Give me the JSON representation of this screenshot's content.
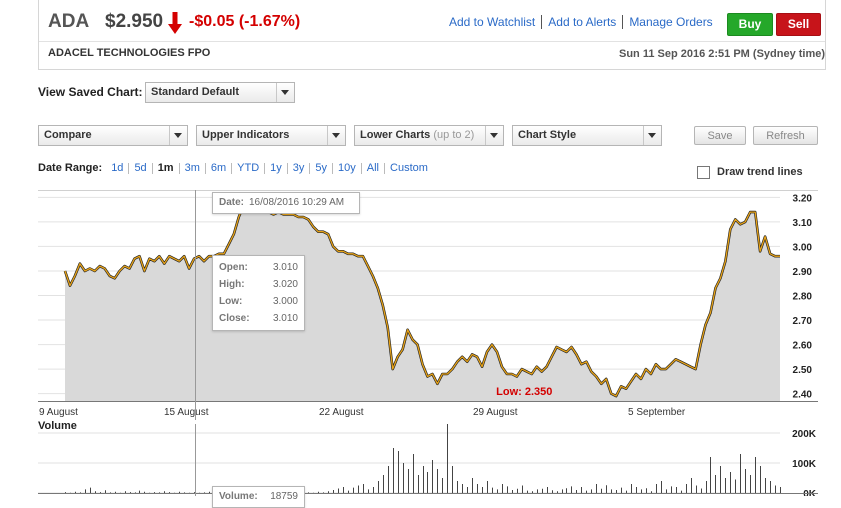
{
  "quote": {
    "ticker": "ADA",
    "price": "$2.950",
    "change": "-$0.05 (-1.67%)",
    "company": "ADACEL TECHNOLOGIES FPO",
    "datetime": "Sun 11 Sep 2016 2:51 PM (Sydney time)"
  },
  "toplinks": [
    "Add to Watchlist",
    "Add to Alerts",
    "Manage Orders"
  ],
  "trade": {
    "buy": "Buy",
    "sell": "Sell"
  },
  "saved_chart": {
    "label": "View Saved Chart:",
    "value": "Standard Default"
  },
  "toolbar": {
    "compare": "Compare",
    "upper_indicators": "Upper Indicators",
    "lower_charts": "Lower Charts",
    "lower_charts_hint": "(up to 2)",
    "chart_style": "Chart Style",
    "save": "Save",
    "refresh": "Refresh"
  },
  "date_range": {
    "label": "Date Range:",
    "options": [
      "1d",
      "5d",
      "1m",
      "3m",
      "6m",
      "YTD",
      "1y",
      "3y",
      "5y",
      "10y",
      "All",
      "Custom"
    ],
    "active": "1m"
  },
  "trend_lines": {
    "label": "Draw trend lines",
    "checked": false
  },
  "colors": {
    "line": "#e8a317",
    "area": "#d9d9d9",
    "negative": "#d40000",
    "link": "#2a6ac7"
  },
  "chart_data": [
    {
      "type": "area",
      "ylabel": "",
      "ylim": [
        2.37,
        3.23
      ],
      "yticks": [
        "3.20",
        "3.10",
        "3.00",
        "2.90",
        "2.80",
        "2.70",
        "2.60",
        "2.50",
        "2.40"
      ],
      "xticks": [
        "9 August",
        "15 August",
        "22 August",
        "29 August",
        "5 September"
      ],
      "series": [
        {
          "x": [
            0,
            1,
            2,
            3,
            4,
            5,
            6,
            7,
            8,
            9,
            10,
            11,
            12,
            13,
            14,
            15,
            16,
            17,
            18,
            19,
            20,
            21,
            22,
            23,
            24,
            25,
            26,
            27,
            28,
            29,
            30,
            31,
            32,
            33,
            34,
            35,
            36,
            37,
            38,
            39,
            40,
            41,
            42,
            43,
            44,
            45,
            46,
            47,
            48,
            49,
            50,
            51,
            52,
            53,
            54,
            55,
            56,
            57,
            58,
            59,
            60,
            61,
            62,
            63,
            64,
            65,
            66,
            67,
            68,
            69,
            70,
            71,
            72,
            73,
            74,
            75,
            76,
            77,
            78,
            79,
            80,
            81,
            82,
            83,
            84,
            85,
            86,
            87,
            88,
            89,
            90,
            91,
            92,
            93,
            94,
            95,
            96,
            97,
            98,
            99,
            100,
            101,
            102,
            103,
            104,
            105,
            106,
            107,
            108,
            109,
            110,
            111,
            112,
            113,
            114,
            115,
            116,
            117,
            118,
            119,
            120,
            121,
            122,
            123,
            124,
            125,
            126,
            127,
            128,
            129,
            130,
            131,
            132,
            133,
            134,
            135,
            136,
            137,
            138,
            139,
            140,
            141,
            142,
            143,
            144
          ],
          "values": [
            2.9,
            2.84,
            2.88,
            2.93,
            2.9,
            2.91,
            2.9,
            2.92,
            2.91,
            2.88,
            2.87,
            2.9,
            2.92,
            2.91,
            2.95,
            2.96,
            2.9,
            2.95,
            2.94,
            2.96,
            2.93,
            2.96,
            2.95,
            2.94,
            2.96,
            2.91,
            2.95,
            2.96,
            2.94,
            2.96,
            2.96,
            2.97,
            2.97,
            3.01,
            3.05,
            3.12,
            3.17,
            3.21,
            3.2,
            3.2,
            3.18,
            3.14,
            3.13,
            3.14,
            3.13,
            3.13,
            3.13,
            3.12,
            3.12,
            3.11,
            3.08,
            3.06,
            3.06,
            3.05,
            3.0,
            2.98,
            2.98,
            2.97,
            2.97,
            2.96,
            2.96,
            2.92,
            2.88,
            2.83,
            2.76,
            2.67,
            2.5,
            2.55,
            2.58,
            2.66,
            2.62,
            2.6,
            2.52,
            2.47,
            2.48,
            2.44,
            2.48,
            2.48,
            2.5,
            2.53,
            2.55,
            2.53,
            2.56,
            2.55,
            2.51,
            2.57,
            2.6,
            2.57,
            2.51,
            2.48,
            2.48,
            2.47,
            2.5,
            2.49,
            2.48,
            2.51,
            2.49,
            2.51,
            2.55,
            2.59,
            2.58,
            2.57,
            2.59,
            2.56,
            2.52,
            2.53,
            2.49,
            2.47,
            2.44,
            2.46,
            2.4,
            2.39,
            2.43,
            2.42,
            2.45,
            2.48,
            2.46,
            2.5,
            2.48,
            2.52,
            2.5,
            2.5,
            2.52,
            2.54,
            2.53,
            2.52,
            2.51,
            2.5,
            2.6,
            2.68,
            2.73,
            2.83,
            2.87,
            2.94,
            3.07,
            3.11,
            3.09,
            3.1,
            3.14,
            3.14,
            2.98,
            3.04,
            2.97,
            2.96,
            2.96
          ]
        }
      ],
      "low_label": "Low: 2.350",
      "tooltip": {
        "date_label": "Date:",
        "date_value": "16/08/2016 10:29 AM",
        "rows": [
          {
            "label": "Open:",
            "value": "3.010"
          },
          {
            "label": "High:",
            "value": "3.020"
          },
          {
            "label": "Low:",
            "value": "3.000"
          },
          {
            "label": "Close:",
            "value": "3.010"
          }
        ]
      }
    },
    {
      "type": "bar",
      "title": "Volume",
      "ylim": [
        0,
        230000
      ],
      "yticks": [
        "200K",
        "100K",
        "0K"
      ],
      "values": [
        3000,
        1000,
        4000,
        2000,
        12000,
        18000,
        6000,
        3000,
        9000,
        2000,
        4000,
        1000,
        6000,
        3000,
        2000,
        8000,
        4000,
        1000,
        3000,
        2000,
        6000,
        3000,
        1000,
        4000,
        2000,
        1000,
        3000,
        1000,
        2000,
        4000,
        2000,
        1000,
        18759,
        6000,
        3000,
        2000,
        4000,
        1000,
        3000,
        2000,
        1000,
        2000,
        3000,
        1000,
        2000,
        1000,
        2000,
        1000,
        3000,
        2000,
        1000,
        4000,
        2000,
        6000,
        10000,
        15000,
        20000,
        8000,
        18000,
        25000,
        30000,
        12000,
        20000,
        40000,
        60000,
        90000,
        150000,
        140000,
        100000,
        80000,
        130000,
        60000,
        90000,
        70000,
        110000,
        80000,
        50000,
        270000,
        90000,
        40000,
        30000,
        20000,
        50000,
        30000,
        20000,
        40000,
        18000,
        12000,
        30000,
        22000,
        10000,
        14000,
        25000,
        8000,
        6000,
        12000,
        14000,
        20000,
        9000,
        6000,
        12000,
        16000,
        22000,
        10000,
        20000,
        8000,
        12000,
        30000,
        14000,
        26000,
        12000,
        10000,
        18000,
        8000,
        30000,
        20000,
        12000,
        16000,
        6000,
        30000,
        40000,
        12000,
        22000,
        20000,
        8000,
        30000,
        50000,
        25000,
        15000,
        40000,
        120000,
        60000,
        90000,
        50000,
        70000,
        45000,
        130000,
        80000,
        60000,
        120000,
        90000,
        50000,
        40000,
        25000,
        20000
      ],
      "tooltip": {
        "label": "Volume:",
        "value": "18759"
      }
    }
  ]
}
